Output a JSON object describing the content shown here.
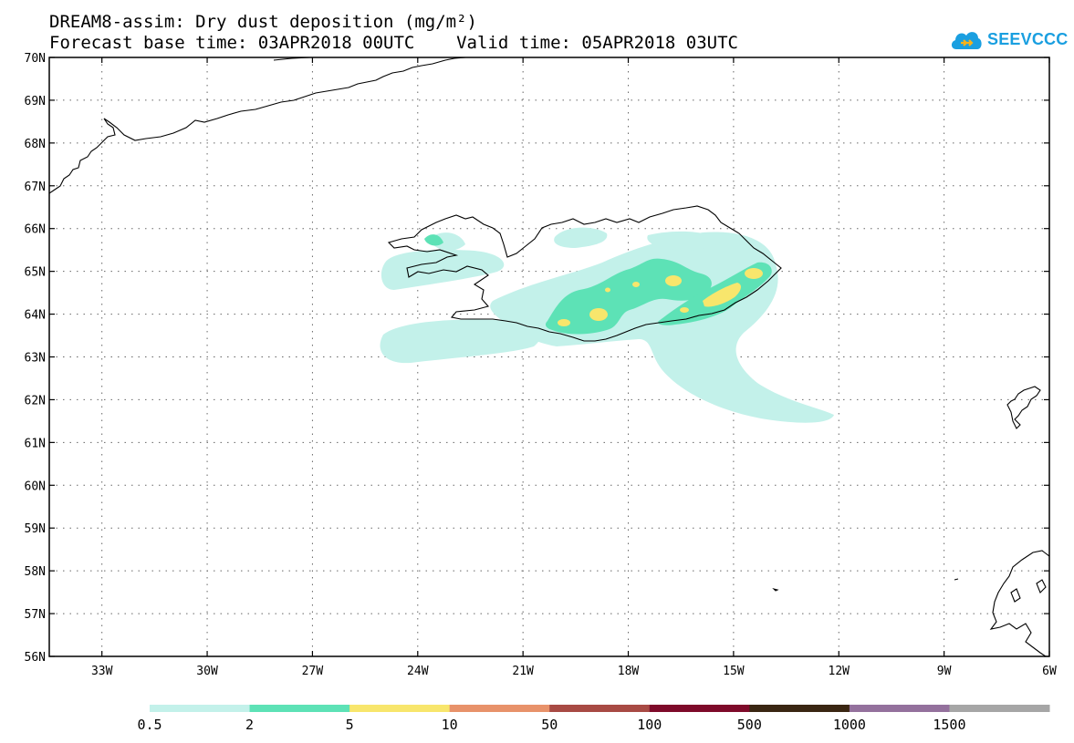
{
  "title": {
    "line1": "DREAM8-assim: Dry dust deposition (mg/m²)",
    "line2": "Forecast base time: 03APR2018 00UTC    Valid time: 05APR2018 03UTC"
  },
  "logo": {
    "text": "SEEVCCC",
    "icon": "cloud-icon",
    "color": "#1a9fe0"
  },
  "map": {
    "lat_range": [
      56,
      70
    ],
    "lon_range": [
      -34.5,
      -6
    ],
    "grid": "dotted",
    "lat_labels": [
      "56N",
      "57N",
      "58N",
      "59N",
      "60N",
      "61N",
      "62N",
      "63N",
      "64N",
      "65N",
      "66N",
      "67N",
      "68N",
      "69N",
      "70N"
    ],
    "lon_labels": [
      "33W",
      "30W",
      "27W",
      "24W",
      "21W",
      "18W",
      "15W",
      "12W",
      "9W",
      "6W"
    ]
  },
  "colorbar": {
    "labels": [
      "0.5",
      "2",
      "5",
      "10",
      "50",
      "100",
      "500",
      "1000",
      "1500"
    ],
    "colors": [
      "#c3f1ea",
      "#5de2b6",
      "#f8e66c",
      "#e8926a",
      "#a84a44",
      "#7e0a2a",
      "#3a2612",
      "#94719d",
      "#a6a6a6"
    ]
  }
}
